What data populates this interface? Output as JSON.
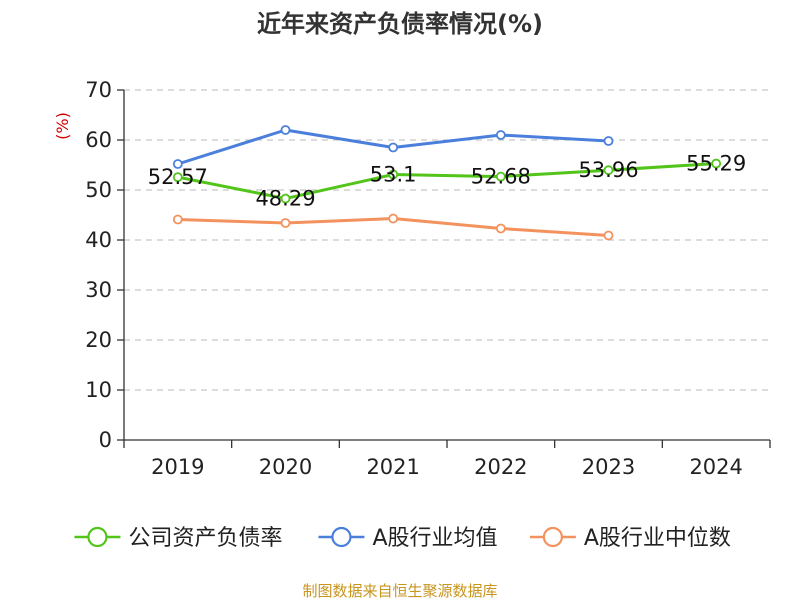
{
  "chart_data": {
    "type": "line",
    "title": "近年来资产负债率情况(%)",
    "ylabel": "(%)",
    "categories": [
      "2019",
      "2020",
      "2021",
      "2022",
      "2023",
      "2024"
    ],
    "ylim": [
      0,
      70
    ],
    "yticks": [
      "0",
      "10",
      "20",
      "30",
      "40",
      "50",
      "60",
      "70"
    ],
    "grid": true,
    "legend_position": "bottom",
    "series": [
      {
        "name": "公司资产负债率",
        "color": "#52c41a",
        "values": [
          52.57,
          48.29,
          53.1,
          52.68,
          53.96,
          55.29
        ],
        "labels": [
          "52.57",
          "48.29",
          "53.1",
          "52.68",
          "53.96",
          "55.29"
        ]
      },
      {
        "name": "A股行业均值",
        "color": "#4a7fdc",
        "values": [
          55.2,
          62.0,
          58.5,
          61.0,
          59.8,
          null
        ]
      },
      {
        "name": "A股行业中位数",
        "color": "#f4925e",
        "values": [
          44.1,
          43.4,
          44.3,
          42.3,
          40.9,
          null
        ]
      }
    ]
  },
  "source": "制图数据来自恒生聚源数据库",
  "colors": {
    "ylabel": "#cc0000",
    "source": "#c8951e",
    "axis": "#333333",
    "grid": "#c8c8c8"
  }
}
